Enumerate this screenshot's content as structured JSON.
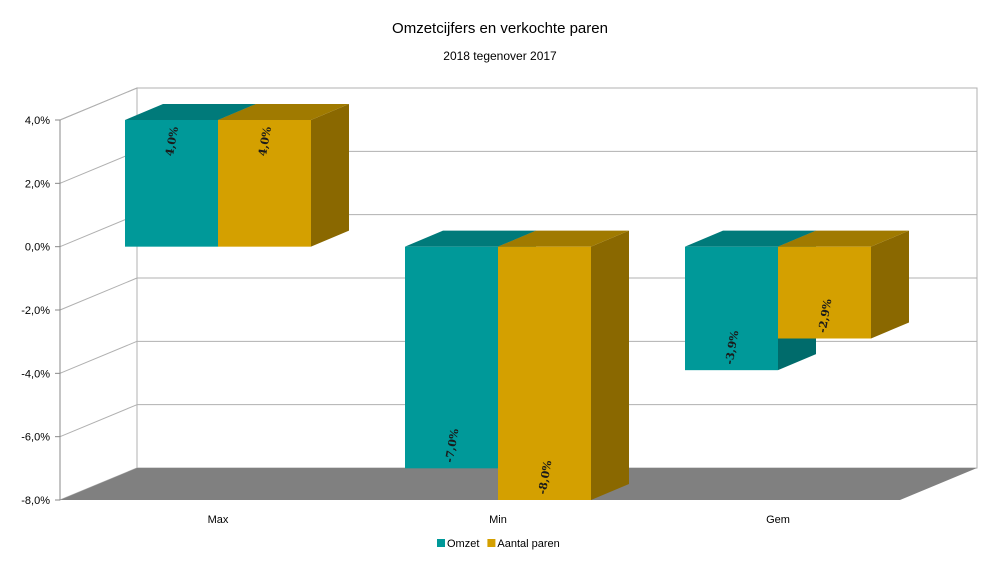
{
  "chart_data": {
    "type": "bar",
    "title": "Omzetcijfers en verkochte paren",
    "subtitle": "2018 tegenover 2017",
    "categories": [
      "Max",
      "Min",
      "Gem"
    ],
    "series": [
      {
        "name": "Omzet",
        "values": [
          4.0,
          -7.0,
          -3.9
        ],
        "labels": [
          "4,0%",
          "-7,0%",
          "-3,9%"
        ],
        "color": "#009999",
        "side_color": "#006b6b",
        "top_color": "#007a7a"
      },
      {
        "name": "Aantal paren",
        "values": [
          4.0,
          -8.0,
          -2.9
        ],
        "labels": [
          "4,0%",
          "-8,0%",
          "-2,9%"
        ],
        "color": "#d4a000",
        "side_color": "#8a6800",
        "top_color": "#a07a00"
      }
    ],
    "yticks": [
      4,
      2,
      0,
      -2,
      -4,
      -6,
      -8
    ],
    "ytick_labels": [
      "4,0%",
      "2,0%",
      "0,0%",
      "-2,0%",
      "-4,0%",
      "-6,0%",
      "-8,0%"
    ],
    "ylim": [
      -8,
      4
    ],
    "grid": true,
    "three_d": true,
    "legend_position": "bottom",
    "floor_color": "#808080",
    "grid_color": "#b0b0b0"
  }
}
